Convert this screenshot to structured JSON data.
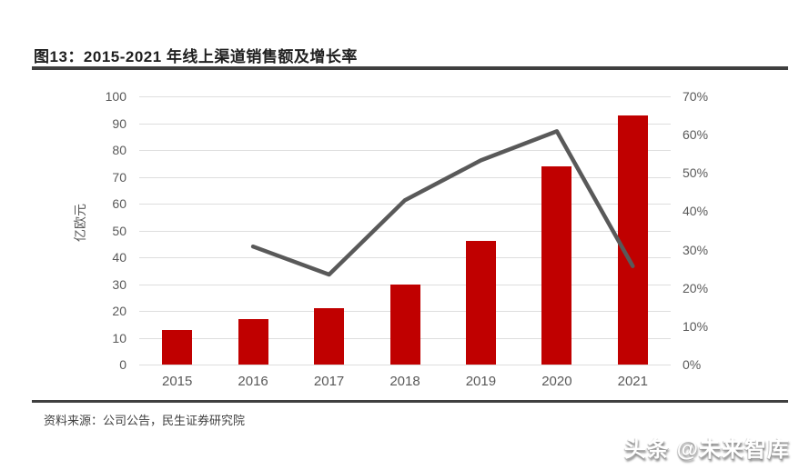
{
  "figure": {
    "title": "图13：2015-2021 年线上渠道销售额及增长率",
    "source": "资料来源：公司公告，民生证券研究院",
    "watermark": "头条 @未来智库"
  },
  "colors": {
    "bar": "#C00000",
    "line": "#595959",
    "grid": "#DEDEDE",
    "axis_text": "#595959",
    "title_text": "#1F1F1F",
    "rule": "#3F3F3F",
    "source_text": "#404040"
  },
  "chart_data": {
    "type": "bar+line",
    "title": "2015-2021 年线上渠道销售额及增长率",
    "categories": [
      "2015",
      "2016",
      "2017",
      "2018",
      "2019",
      "2020",
      "2021"
    ],
    "series": [
      {
        "name": "线上渠道销售额",
        "type": "bar",
        "axis": "left",
        "unit": "亿欧元",
        "values": [
          13,
          17,
          21,
          30,
          46,
          74,
          93
        ]
      },
      {
        "name": "增长率",
        "type": "line",
        "axis": "right",
        "unit": "%",
        "values": [
          null,
          30.8,
          23.5,
          42.9,
          53.3,
          60.9,
          25.7
        ]
      }
    ],
    "left_axis": {
      "label": "亿欧元",
      "min": 0,
      "max": 100,
      "step": 10,
      "ticks": [
        0,
        10,
        20,
        30,
        40,
        50,
        60,
        70,
        80,
        90,
        100
      ]
    },
    "right_axis": {
      "min": 0,
      "max": 70,
      "step": 10,
      "suffix": "%",
      "ticks": [
        0,
        10,
        20,
        30,
        40,
        50,
        60,
        70
      ]
    },
    "grid": true,
    "legend": "none"
  }
}
